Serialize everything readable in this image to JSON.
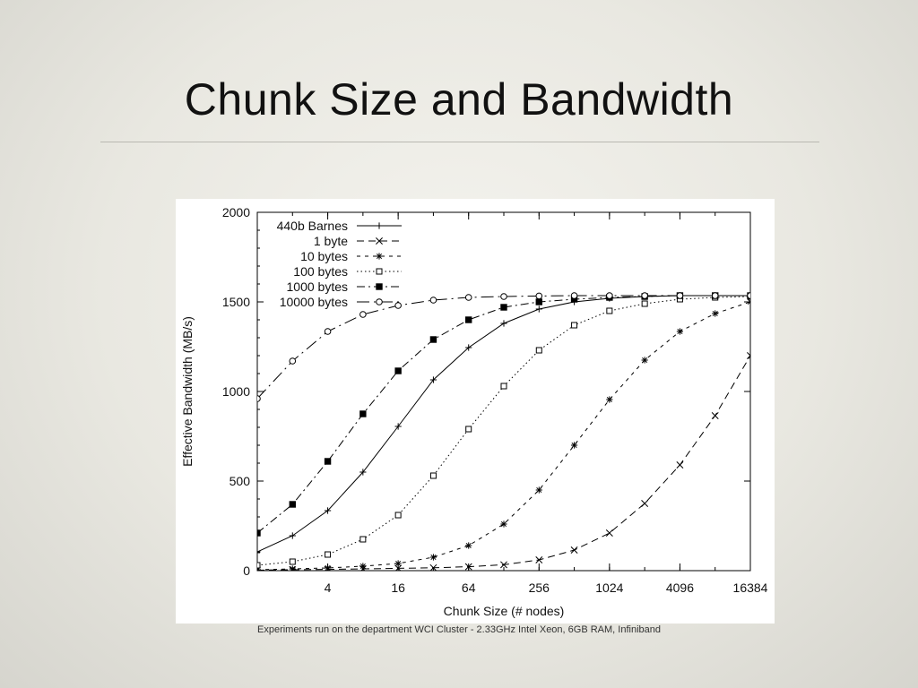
{
  "slide": {
    "title": "Chunk Size and Bandwidth",
    "footnote": "Experiments run on the department WCI Cluster - 2.33GHz Intel Xeon, 6GB RAM, Infiniband"
  },
  "chart_data": {
    "type": "line",
    "xlabel": "Chunk Size (# nodes)",
    "ylabel": "Effective Bandwidth (MB/s)",
    "x_scale": "log2",
    "xlim": [
      1,
      16384
    ],
    "ylim": [
      0,
      2000
    ],
    "x_ticks": [
      4,
      16,
      64,
      256,
      1024,
      4096,
      16384
    ],
    "x_tick_labels": [
      "4",
      "16",
      "64",
      "256",
      "1024",
      "4096",
      "16384"
    ],
    "y_ticks": [
      0,
      500,
      1000,
      1500,
      2000
    ],
    "grid": false,
    "legend_position": "top-left",
    "x": [
      1,
      2,
      4,
      8,
      16,
      32,
      64,
      128,
      256,
      512,
      1024,
      2048,
      4096,
      8192,
      16384
    ],
    "series": [
      {
        "name": "440b Barnes",
        "marker": "plus",
        "dash": "solid",
        "values": [
          105,
          195,
          335,
          550,
          805,
          1065,
          1245,
          1380,
          1460,
          1500,
          1520,
          1530,
          1535,
          1535,
          1535
        ]
      },
      {
        "name": "1 byte",
        "marker": "x",
        "dash": "dash",
        "values": [
          3,
          5,
          7,
          10,
          13,
          16,
          22,
          33,
          60,
          115,
          210,
          375,
          590,
          865,
          1200
        ]
      },
      {
        "name": "10 bytes",
        "marker": "star",
        "dash": "shortdash",
        "values": [
          5,
          10,
          15,
          25,
          40,
          75,
          140,
          260,
          450,
          700,
          955,
          1175,
          1335,
          1435,
          1500
        ]
      },
      {
        "name": "100 bytes",
        "marker": "open-square",
        "dash": "dot",
        "values": [
          30,
          50,
          90,
          175,
          310,
          530,
          790,
          1030,
          1230,
          1370,
          1450,
          1490,
          1515,
          1525,
          1530
        ]
      },
      {
        "name": "1000 bytes",
        "marker": "filled-square",
        "dash": "dashdot",
        "values": [
          210,
          370,
          610,
          875,
          1115,
          1290,
          1400,
          1470,
          1500,
          1515,
          1525,
          1530,
          1535,
          1535,
          1535
        ]
      },
      {
        "name": "10000 bytes",
        "marker": "open-circle",
        "dash": "dashdotlong",
        "values": [
          960,
          1170,
          1335,
          1430,
          1480,
          1510,
          1525,
          1530,
          1533,
          1535,
          1535,
          1535,
          1535,
          1535,
          1535
        ]
      }
    ]
  }
}
